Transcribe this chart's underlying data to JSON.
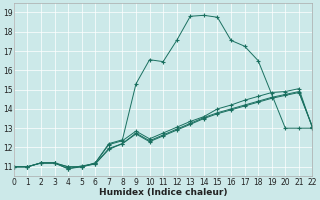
{
  "xlabel": "Humidex (Indice chaleur)",
  "bg_color": "#cce9e9",
  "line_color": "#1a7060",
  "xlim": [
    0,
    22
  ],
  "ylim": [
    10.5,
    19.5
  ],
  "xticks": [
    0,
    1,
    2,
    3,
    4,
    5,
    6,
    7,
    8,
    9,
    10,
    11,
    12,
    13,
    14,
    15,
    16,
    17,
    18,
    19,
    20,
    21,
    22
  ],
  "yticks": [
    11,
    12,
    13,
    14,
    15,
    16,
    17,
    18,
    19
  ],
  "lines": [
    {
      "x": [
        0,
        1,
        2,
        3,
        4,
        5,
        6,
        7,
        8,
        9,
        10,
        11,
        12,
        13,
        14,
        15,
        16,
        17,
        18,
        20,
        21,
        22
      ],
      "y": [
        11,
        11,
        11.2,
        11.2,
        11.0,
        11.0,
        11.2,
        12.2,
        12.4,
        15.3,
        16.55,
        16.45,
        17.55,
        18.8,
        18.85,
        18.75,
        17.55,
        17.25,
        16.5,
        13.0,
        13.0,
        13.0
      ]
    },
    {
      "x": [
        0,
        1,
        2,
        3,
        4,
        5,
        6,
        7,
        8,
        9,
        10,
        11,
        12,
        13,
        14,
        15,
        16,
        17,
        18,
        19,
        20,
        21,
        22
      ],
      "y": [
        11,
        11,
        11.2,
        11.2,
        11.0,
        11.0,
        11.2,
        12.15,
        12.35,
        12.85,
        12.45,
        12.75,
        13.05,
        13.35,
        13.6,
        14.0,
        14.2,
        14.45,
        14.65,
        14.85,
        14.9,
        15.05,
        13.0
      ]
    },
    {
      "x": [
        0,
        1,
        2,
        3,
        4,
        5,
        6,
        7,
        8,
        9,
        10,
        11,
        12,
        13,
        14,
        15,
        16,
        17,
        18,
        19,
        20,
        21,
        22
      ],
      "y": [
        11,
        11,
        11.2,
        11.2,
        10.9,
        11.0,
        11.15,
        11.95,
        12.2,
        12.7,
        12.3,
        12.6,
        12.9,
        13.2,
        13.5,
        13.75,
        13.95,
        14.15,
        14.35,
        14.55,
        14.7,
        14.85,
        13.05
      ]
    },
    {
      "x": [
        0,
        1,
        2,
        3,
        4,
        5,
        6,
        7,
        8,
        9,
        10,
        11,
        12,
        13,
        14,
        15,
        16,
        17,
        18,
        19,
        20,
        21,
        22
      ],
      "y": [
        11,
        11,
        11.2,
        11.2,
        10.9,
        11.05,
        11.15,
        11.9,
        12.2,
        12.75,
        12.35,
        12.65,
        12.95,
        13.25,
        13.55,
        13.8,
        14.0,
        14.2,
        14.4,
        14.6,
        14.75,
        14.9,
        13.07
      ]
    }
  ]
}
